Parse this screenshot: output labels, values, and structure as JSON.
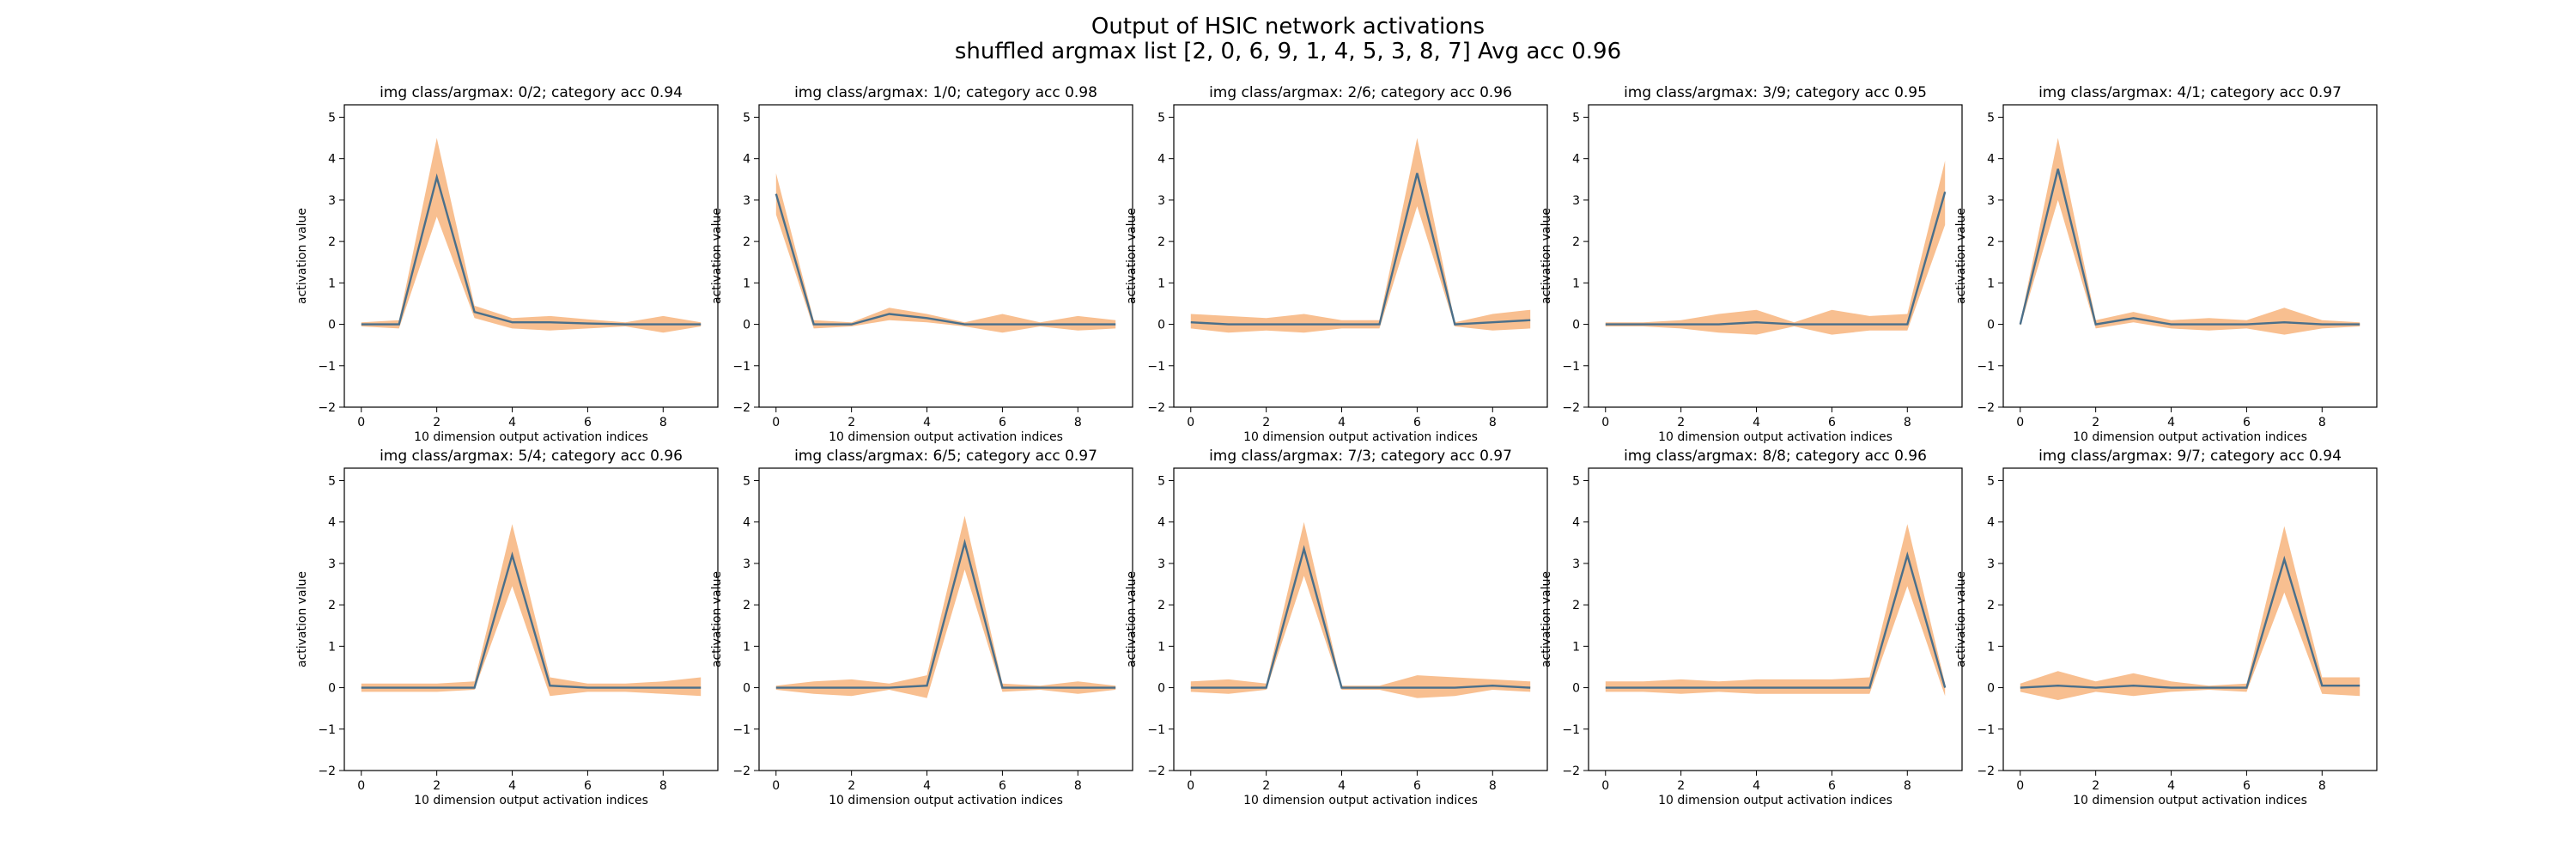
{
  "figure": {
    "title_line1": "Output of HSIC network activations",
    "title_line2": "shuffled argmax list [2, 0, 6, 9, 1, 4, 5, 3, 8, 7] Avg acc 0.96",
    "colors": {
      "band": "#f5a96b",
      "line": "#4a6f8a"
    }
  },
  "chart_data": [
    {
      "type": "line",
      "title": "img class/argmax: 0/2; category acc 0.94",
      "xlabel": "10 dimension output activation indices",
      "ylabel": "activation value",
      "xlim": [
        -0.45,
        9.45
      ],
      "ylim": [
        -2,
        5.3
      ],
      "xticks": [
        0,
        2,
        4,
        6,
        8
      ],
      "yticks": [
        -2,
        -1,
        0,
        1,
        2,
        3,
        4,
        5
      ],
      "x": [
        0,
        1,
        2,
        3,
        4,
        5,
        6,
        7,
        8,
        9
      ],
      "mean": [
        0,
        0,
        3.55,
        0.3,
        0.05,
        0.05,
        0.02,
        0,
        0,
        0
      ],
      "upper": [
        0.05,
        0.1,
        4.5,
        0.45,
        0.15,
        0.2,
        0.12,
        0.05,
        0.2,
        0.05
      ],
      "lower": [
        -0.05,
        -0.1,
        2.6,
        0.15,
        -0.1,
        -0.15,
        -0.1,
        -0.05,
        -0.2,
        -0.05
      ]
    },
    {
      "type": "line",
      "title": "img class/argmax: 1/0; category acc 0.98",
      "xlabel": "10 dimension output activation indices",
      "ylabel": "activation value",
      "xlim": [
        -0.45,
        9.45
      ],
      "ylim": [
        -2,
        5.3
      ],
      "xticks": [
        0,
        2,
        4,
        6,
        8
      ],
      "yticks": [
        -2,
        -1,
        0,
        1,
        2,
        3,
        4,
        5
      ],
      "x": [
        0,
        1,
        2,
        3,
        4,
        5,
        6,
        7,
        8,
        9
      ],
      "mean": [
        3.15,
        0,
        0,
        0.25,
        0.15,
        0,
        0,
        0,
        0,
        0
      ],
      "upper": [
        3.65,
        0.1,
        0.05,
        0.4,
        0.25,
        0.05,
        0.25,
        0.05,
        0.2,
        0.1
      ],
      "lower": [
        2.65,
        -0.1,
        -0.05,
        0.1,
        0.05,
        -0.05,
        -0.2,
        -0.05,
        -0.15,
        -0.1
      ]
    },
    {
      "type": "line",
      "title": "img class/argmax: 2/6; category acc 0.96",
      "xlabel": "10 dimension output activation indices",
      "ylabel": "activation value",
      "xlim": [
        -0.45,
        9.45
      ],
      "ylim": [
        -2,
        5.3
      ],
      "xticks": [
        0,
        2,
        4,
        6,
        8
      ],
      "yticks": [
        -2,
        -1,
        0,
        1,
        2,
        3,
        4,
        5
      ],
      "x": [
        0,
        1,
        2,
        3,
        4,
        5,
        6,
        7,
        8,
        9
      ],
      "mean": [
        0.05,
        0,
        0,
        0,
        0,
        0,
        3.65,
        0,
        0.05,
        0.1
      ],
      "upper": [
        0.25,
        0.2,
        0.15,
        0.25,
        0.1,
        0.1,
        4.5,
        0.05,
        0.25,
        0.35
      ],
      "lower": [
        -0.1,
        -0.2,
        -0.15,
        -0.2,
        -0.1,
        -0.1,
        2.85,
        -0.05,
        -0.15,
        -0.1
      ]
    },
    {
      "type": "line",
      "title": "img class/argmax: 3/9; category acc 0.95",
      "xlabel": "10 dimension output activation indices",
      "ylabel": "activation value",
      "xlim": [
        -0.45,
        9.45
      ],
      "ylim": [
        -2,
        5.3
      ],
      "xticks": [
        0,
        2,
        4,
        6,
        8
      ],
      "yticks": [
        -2,
        -1,
        0,
        1,
        2,
        3,
        4,
        5
      ],
      "x": [
        0,
        1,
        2,
        3,
        4,
        5,
        6,
        7,
        8,
        9
      ],
      "mean": [
        0,
        0,
        0,
        0,
        0.05,
        0,
        0,
        0,
        0,
        3.2
      ],
      "upper": [
        0.05,
        0.05,
        0.1,
        0.25,
        0.35,
        0.05,
        0.35,
        0.2,
        0.25,
        3.95
      ],
      "lower": [
        -0.05,
        -0.05,
        -0.1,
        -0.2,
        -0.25,
        -0.05,
        -0.25,
        -0.15,
        -0.15,
        2.4
      ]
    },
    {
      "type": "line",
      "title": "img class/argmax: 4/1; category acc 0.97",
      "xlabel": "10 dimension output activation indices",
      "ylabel": "activation value",
      "xlim": [
        -0.45,
        9.45
      ],
      "ylim": [
        -2,
        5.3
      ],
      "xticks": [
        0,
        2,
        4,
        6,
        8
      ],
      "yticks": [
        -2,
        -1,
        0,
        1,
        2,
        3,
        4,
        5
      ],
      "x": [
        0,
        1,
        2,
        3,
        4,
        5,
        6,
        7,
        8,
        9
      ],
      "mean": [
        0,
        3.75,
        0,
        0.15,
        0,
        0,
        0,
        0.05,
        0,
        0
      ],
      "upper": [
        0.05,
        4.5,
        0.1,
        0.3,
        0.1,
        0.15,
        0.1,
        0.4,
        0.1,
        0.05
      ],
      "lower": [
        -0.05,
        3.0,
        -0.1,
        0.05,
        -0.1,
        -0.15,
        -0.1,
        -0.25,
        -0.1,
        -0.05
      ]
    },
    {
      "type": "line",
      "title": "img class/argmax: 5/4; category acc 0.96",
      "xlabel": "10 dimension output activation indices",
      "ylabel": "activation value",
      "xlim": [
        -0.45,
        9.45
      ],
      "ylim": [
        -2,
        5.3
      ],
      "xticks": [
        0,
        2,
        4,
        6,
        8
      ],
      "yticks": [
        -2,
        -1,
        0,
        1,
        2,
        3,
        4,
        5
      ],
      "x": [
        0,
        1,
        2,
        3,
        4,
        5,
        6,
        7,
        8,
        9
      ],
      "mean": [
        0,
        0,
        0,
        0,
        3.2,
        0.05,
        0,
        0,
        0,
        0
      ],
      "upper": [
        0.1,
        0.1,
        0.1,
        0.15,
        3.95,
        0.25,
        0.1,
        0.1,
        0.15,
        0.25
      ],
      "lower": [
        -0.1,
        -0.1,
        -0.1,
        -0.05,
        2.45,
        -0.2,
        -0.1,
        -0.1,
        -0.15,
        -0.2
      ]
    },
    {
      "type": "line",
      "title": "img class/argmax: 6/5; category acc 0.97",
      "xlabel": "10 dimension output activation indices",
      "ylabel": "activation value",
      "xlim": [
        -0.45,
        9.45
      ],
      "ylim": [
        -2,
        5.3
      ],
      "xticks": [
        0,
        2,
        4,
        6,
        8
      ],
      "yticks": [
        -2,
        -1,
        0,
        1,
        2,
        3,
        4,
        5
      ],
      "x": [
        0,
        1,
        2,
        3,
        4,
        5,
        6,
        7,
        8,
        9
      ],
      "mean": [
        0,
        0,
        0,
        0,
        0.05,
        3.5,
        0,
        0,
        0,
        0
      ],
      "upper": [
        0.05,
        0.15,
        0.2,
        0.1,
        0.3,
        4.15,
        0.1,
        0.05,
        0.15,
        0.05
      ],
      "lower": [
        -0.05,
        -0.15,
        -0.2,
        -0.05,
        -0.25,
        2.85,
        -0.1,
        -0.05,
        -0.15,
        -0.05
      ]
    },
    {
      "type": "line",
      "title": "img class/argmax: 7/3; category acc 0.97",
      "xlabel": "10 dimension output activation indices",
      "ylabel": "activation value",
      "xlim": [
        -0.45,
        9.45
      ],
      "ylim": [
        -2,
        5.3
      ],
      "xticks": [
        0,
        2,
        4,
        6,
        8
      ],
      "yticks": [
        -2,
        -1,
        0,
        1,
        2,
        3,
        4,
        5
      ],
      "x": [
        0,
        1,
        2,
        3,
        4,
        5,
        6,
        7,
        8,
        9
      ],
      "mean": [
        0,
        0,
        0,
        3.35,
        0,
        0,
        0,
        0,
        0.05,
        0
      ],
      "upper": [
        0.15,
        0.2,
        0.1,
        4.0,
        0.05,
        0.05,
        0.3,
        0.25,
        0.2,
        0.15
      ],
      "lower": [
        -0.1,
        -0.15,
        -0.05,
        2.7,
        -0.05,
        -0.05,
        -0.25,
        -0.2,
        -0.05,
        -0.1
      ]
    },
    {
      "type": "line",
      "title": "img class/argmax: 8/8; category acc 0.96",
      "xlabel": "10 dimension output activation indices",
      "ylabel": "activation value",
      "xlim": [
        -0.45,
        9.45
      ],
      "ylim": [
        -2,
        5.3
      ],
      "xticks": [
        0,
        2,
        4,
        6,
        8
      ],
      "yticks": [
        -2,
        -1,
        0,
        1,
        2,
        3,
        4,
        5
      ],
      "x": [
        0,
        1,
        2,
        3,
        4,
        5,
        6,
        7,
        8,
        9
      ],
      "mean": [
        0,
        0,
        0,
        0,
        0,
        0,
        0,
        0,
        3.2,
        0
      ],
      "upper": [
        0.15,
        0.15,
        0.2,
        0.15,
        0.2,
        0.2,
        0.2,
        0.25,
        3.95,
        0.1
      ],
      "lower": [
        -0.1,
        -0.1,
        -0.15,
        -0.1,
        -0.15,
        -0.15,
        -0.15,
        -0.15,
        2.45,
        -0.2
      ]
    },
    {
      "type": "line",
      "title": "img class/argmax: 9/7; category acc 0.94",
      "xlabel": "10 dimension output activation indices",
      "ylabel": "activation value",
      "xlim": [
        -0.45,
        9.45
      ],
      "ylim": [
        -2,
        5.3
      ],
      "xticks": [
        0,
        2,
        4,
        6,
        8
      ],
      "yticks": [
        -2,
        -1,
        0,
        1,
        2,
        3,
        4,
        5
      ],
      "x": [
        0,
        1,
        2,
        3,
        4,
        5,
        6,
        7,
        8,
        9
      ],
      "mean": [
        0,
        0.05,
        0,
        0.05,
        0,
        0,
        0,
        3.1,
        0.05,
        0.05
      ],
      "upper": [
        0.1,
        0.4,
        0.15,
        0.35,
        0.15,
        0.05,
        0.1,
        3.9,
        0.25,
        0.25
      ],
      "lower": [
        -0.1,
        -0.3,
        -0.1,
        -0.2,
        -0.1,
        -0.05,
        -0.1,
        2.3,
        -0.15,
        -0.2
      ]
    }
  ]
}
